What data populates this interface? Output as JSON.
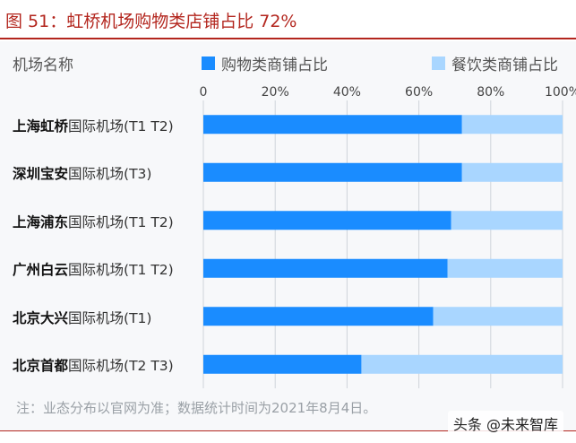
{
  "figure_title": "图 51：虹桥机场购物类店铺占比 72%",
  "column_header": "机场名称",
  "legend": {
    "shop": "购物类商铺占比",
    "food": "餐饮类商铺占比"
  },
  "colors": {
    "title": "#b3261e",
    "shop": "#1a8cff",
    "food": "#a9d6ff",
    "grid": "#cfd4da"
  },
  "rows": [
    {
      "name": "上海虹桥",
      "detail": "国际机场(T1 T2)"
    },
    {
      "name": "深圳宝安",
      "detail": "国际机场(T3)"
    },
    {
      "name": "上海浦东",
      "detail": "国际机场(T1 T2)"
    },
    {
      "name": "广州白云",
      "detail": "国际机场(T1 T2)"
    },
    {
      "name": "北京大兴",
      "detail": "国际机场(T1)"
    },
    {
      "name": "北京首都",
      "detail": "国际机场(T2 T3)"
    }
  ],
  "note": "注：业态分布以官网为准；数据统计时间为2021年8月4日。",
  "watermark": "头条 @未来智库",
  "chart_data": {
    "type": "bar",
    "orientation": "horizontal",
    "stacked": true,
    "title": "图 51：虹桥机场购物类店铺占比 72%",
    "categories": [
      "上海虹桥国际机场(T1 T2)",
      "深圳宝安国际机场(T3)",
      "上海浦东国际机场(T1 T2)",
      "广州白云国际机场(T1 T2)",
      "北京大兴国际机场(T1)",
      "北京首都国际机场(T2 T3)"
    ],
    "series": [
      {
        "name": "购物类商铺占比",
        "values": [
          72,
          72,
          69,
          68,
          64,
          44
        ]
      },
      {
        "name": "餐饮类商铺占比",
        "values": [
          28,
          28,
          31,
          32,
          36,
          56
        ]
      }
    ],
    "xlim": [
      0,
      100
    ],
    "ticks": [
      "0",
      "20%",
      "40%",
      "60%",
      "80%",
      "100%"
    ],
    "tick_values": [
      0,
      20,
      40,
      60,
      80,
      100
    ],
    "legend_position": "top",
    "grid": true
  }
}
